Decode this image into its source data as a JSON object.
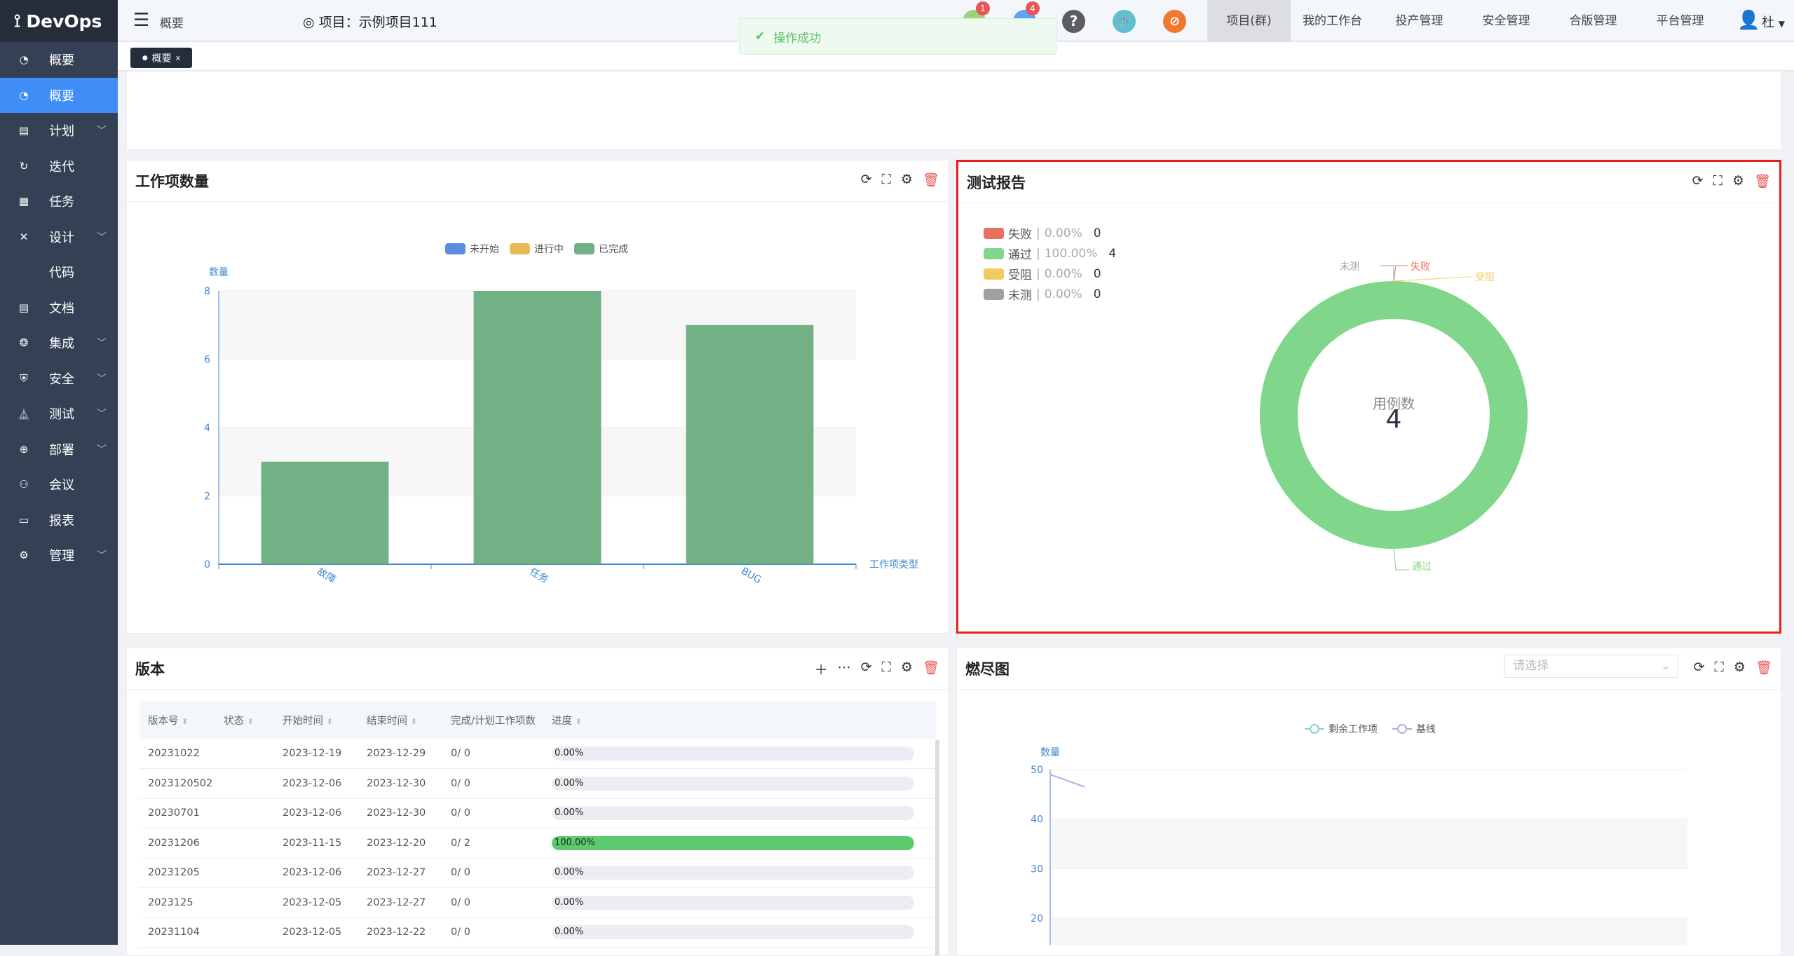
{
  "app": {
    "logo": "DevOps"
  },
  "sidebar": {
    "items": [
      {
        "label": "概要",
        "icon": "dashboard-icon",
        "active": false,
        "chevron": false
      },
      {
        "label": "概要",
        "icon": "dashboard-icon",
        "active": true,
        "chevron": false
      },
      {
        "label": "计划",
        "icon": "plan-icon",
        "chevron": true
      },
      {
        "label": "迭代",
        "icon": "iteration-icon",
        "chevron": false
      },
      {
        "label": "任务",
        "icon": "task-icon",
        "chevron": false
      },
      {
        "label": "设计",
        "icon": "design-icon",
        "chevron": true
      },
      {
        "label": "代码",
        "icon": "code-icon",
        "chevron": false
      },
      {
        "label": "文档",
        "icon": "document-icon",
        "chevron": false
      },
      {
        "label": "集成",
        "icon": "integration-icon",
        "chevron": true
      },
      {
        "label": "安全",
        "icon": "shield-icon",
        "chevron": true
      },
      {
        "label": "测试",
        "icon": "flask-icon",
        "chevron": true
      },
      {
        "label": "部署",
        "icon": "crosshair-icon",
        "chevron": true
      },
      {
        "label": "会议",
        "icon": "meeting-icon",
        "chevron": false
      },
      {
        "label": "报表",
        "icon": "report-icon",
        "chevron": false
      },
      {
        "label": "管理",
        "icon": "gear-icon",
        "chevron": true
      }
    ]
  },
  "header": {
    "breadcrumb": "概要",
    "project": "项目：示例项目111",
    "badge1": "1",
    "badge2": "4",
    "nav": [
      "项目(群)",
      "我的工作台",
      "投产管理",
      "安全管理",
      "合版管理",
      "平台管理"
    ],
    "user": "杜"
  },
  "toast": {
    "text": "操作成功"
  },
  "tabs": [
    {
      "label": "概要"
    }
  ],
  "workitems": {
    "title": "工作项数量"
  },
  "testreport": {
    "title": "测试报告",
    "center_label": "用例数",
    "center_value": "4"
  },
  "version": {
    "title": "版本",
    "columns": [
      "版本号",
      "状态",
      "开始时间",
      "结束时间",
      "完成/计划工作项数",
      "进度"
    ],
    "rows": [
      [
        "20231022",
        "",
        "2023-12-19",
        "2023-12-29",
        "0/ 0",
        "0.00%"
      ],
      [
        "2023120502",
        "",
        "2023-12-06",
        "2023-12-30",
        "0/ 0",
        "0.00%"
      ],
      [
        "20230701",
        "",
        "2023-12-06",
        "2023-12-30",
        "0/ 0",
        "0.00%"
      ],
      [
        "20231206",
        "",
        "2023-11-15",
        "2023-12-20",
        "0/ 2",
        "100.00%"
      ],
      [
        "20231205",
        "",
        "2023-12-06",
        "2023-12-27",
        "0/ 0",
        "0.00%"
      ],
      [
        "2023125",
        "",
        "2023-12-05",
        "2023-12-27",
        "0/ 0",
        "0.00%"
      ],
      [
        "20231104",
        "",
        "2023-12-05",
        "2023-12-22",
        "0/ 0",
        "0.00%"
      ]
    ],
    "progress": [
      0,
      0,
      0,
      100,
      0,
      0,
      0
    ]
  },
  "burndown": {
    "title": "燃尽图",
    "select_placeholder": "请选择"
  },
  "chart_data": [
    {
      "type": "bar",
      "ylabel": "数量",
      "xlabel": "工作项类型",
      "categories": [
        "故障",
        "任务",
        "BUG"
      ],
      "series": [
        {
          "name": "未开始",
          "color": "#5b8ddc",
          "values": [
            0,
            0,
            0
          ]
        },
        {
          "name": "进行中",
          "color": "#e8bb57",
          "values": [
            0,
            0,
            0
          ]
        },
        {
          "name": "已完成",
          "color": "#72b085",
          "values": [
            3,
            8,
            7
          ]
        }
      ],
      "yticks": [
        "0",
        "2",
        "4",
        "6",
        "8"
      ],
      "ylim": [
        0,
        8
      ],
      "legend": "top"
    },
    {
      "type": "pie",
      "donut": true,
      "slices": [
        {
          "name": "失败",
          "percent": "0.00%",
          "value": 0,
          "color": "#e8705f"
        },
        {
          "name": "通过",
          "percent": "100.00%",
          "value": 4,
          "color": "#80d68a"
        },
        {
          "name": "受阻",
          "percent": "0.00%",
          "value": 0,
          "color": "#f0cc60"
        },
        {
          "name": "未测",
          "percent": "0.00%",
          "value": 0,
          "color": "#a0a0a0"
        }
      ],
      "legend": "top-left"
    },
    {
      "type": "line",
      "ylabel": "数量",
      "yticks": [
        "50",
        "40",
        "30",
        "20"
      ],
      "series": [
        {
          "name": "剩余工作项",
          "color": "#7fd3d3"
        },
        {
          "name": "基线",
          "color": "#b9a6e8",
          "values": [
            49,
            46.5
          ]
        }
      ],
      "legend": "top"
    }
  ]
}
